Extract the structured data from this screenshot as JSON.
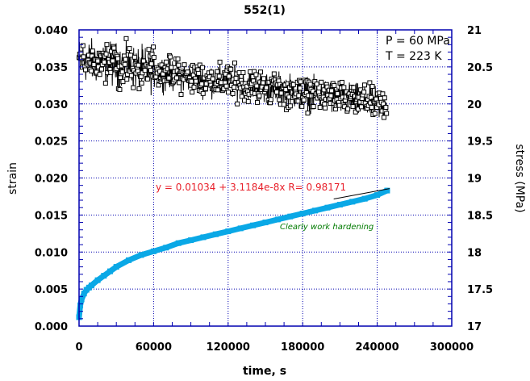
{
  "chart_data": {
    "type": "scatter",
    "title": "552(1)",
    "xlabel": "time, s",
    "ylabel": "strain",
    "y2label": "stress (MPa)",
    "xlim": [
      0,
      300000
    ],
    "ylim": [
      0,
      0.04
    ],
    "y2lim": [
      17,
      21
    ],
    "grid": true,
    "x_ticks": [
      "0",
      "60000",
      "120000",
      "180000",
      "240000",
      "300000"
    ],
    "x_tick_values": [
      0,
      60000,
      120000,
      180000,
      240000,
      300000
    ],
    "y_ticks": [
      "0.000",
      "0.005",
      "0.010",
      "0.015",
      "0.020",
      "0.025",
      "0.030",
      "0.035",
      "0.040"
    ],
    "y_tick_values": [
      0,
      0.005,
      0.01,
      0.015,
      0.02,
      0.025,
      0.03,
      0.035,
      0.04
    ],
    "y2_ticks": [
      "17",
      "17.5",
      "18",
      "18.5",
      "19",
      "19.5",
      "20",
      "20.5",
      "21"
    ],
    "y2_tick_values": [
      17,
      17.5,
      18,
      18.5,
      19,
      19.5,
      20,
      20.5,
      21
    ],
    "conditions": [
      "P = 60 MPa",
      "T = 223 K"
    ],
    "series": [
      {
        "name": "strain",
        "axis": "left",
        "color": "#0aa8e6",
        "marker": "filled",
        "x": [
          0,
          1000,
          2000,
          4000,
          6000,
          8000,
          10000,
          15000,
          20000,
          25000,
          30000,
          40000,
          50000,
          60000,
          70000,
          80000,
          90000,
          100000,
          110000,
          120000,
          130000,
          140000,
          150000,
          160000,
          170000,
          180000,
          190000,
          200000,
          210000,
          220000,
          230000,
          240000,
          248000
        ],
        "values": [
          0.0012,
          0.0028,
          0.0036,
          0.0044,
          0.0049,
          0.0052,
          0.0055,
          0.0062,
          0.0068,
          0.0074,
          0.008,
          0.0089,
          0.0096,
          0.0101,
          0.0106,
          0.0112,
          0.0116,
          0.012,
          0.0124,
          0.0128,
          0.0132,
          0.0136,
          0.014,
          0.0144,
          0.0148,
          0.0152,
          0.0156,
          0.016,
          0.0164,
          0.0168,
          0.0172,
          0.0177,
          0.0183
        ]
      },
      {
        "name": "stress",
        "axis": "right",
        "color": "#000000",
        "marker": "open-square",
        "trend_x": [
          0,
          20000,
          40000,
          60000,
          80000,
          100000,
          120000,
          140000,
          160000,
          180000,
          200000,
          220000,
          240000,
          248000
        ],
        "trend_values": [
          20.6,
          20.55,
          20.5,
          20.45,
          20.38,
          20.33,
          20.3,
          20.25,
          20.2,
          20.15,
          20.1,
          20.05,
          20.0,
          19.98
        ],
        "scatter_amplitude": 0.18
      }
    ],
    "fit": {
      "label": "y = 0.01034 + 3.1184e-8x   R= 0.98171",
      "intercept": 0.01034,
      "slope": 3.1184e-08,
      "x_range": [
        205000,
        250000
      ],
      "color": "#e8202a"
    },
    "annotation": {
      "text": "Clearly work hardening",
      "color": "#007a00"
    }
  },
  "colors": {
    "axis": "#0000b0",
    "grid": "#0000b0"
  }
}
